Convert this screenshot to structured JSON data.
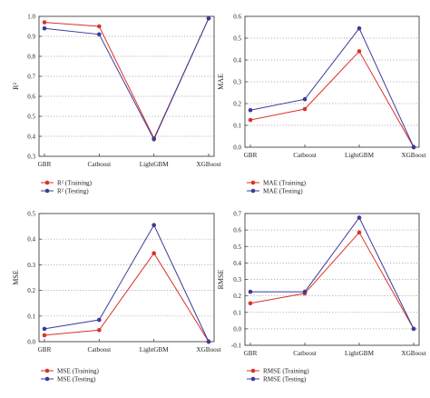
{
  "chart_data": [
    {
      "type": "line",
      "categories": [
        "GBR",
        "Catboost",
        "LightGBM",
        "XGBoost"
      ],
      "ylabel": "R²",
      "ylim": [
        0.3,
        1.0
      ],
      "yticks": [
        "0.3",
        "0.4",
        "0.5",
        "0.6",
        "0.7",
        "0.8",
        "0.9",
        "1.0"
      ],
      "grid": "horizontal dotted",
      "legend_position": "below",
      "series": [
        {
          "name": "R² (Training)",
          "color": "#d9332b",
          "values": [
            0.97,
            0.95,
            0.39,
            0.99
          ]
        },
        {
          "name": "R² (Testing)",
          "color": "#3b3b9a",
          "values": [
            0.94,
            0.91,
            0.385,
            0.99
          ]
        }
      ]
    },
    {
      "type": "line",
      "categories": [
        "GBR",
        "Catboost",
        "LightGBM",
        "XGBoost"
      ],
      "ylabel": "MAE",
      "ylim": [
        0.0,
        0.6
      ],
      "yticks": [
        "0.0",
        "0.1",
        "0.2",
        "0.3",
        "0.4",
        "0.5",
        "0.6"
      ],
      "grid": "horizontal dotted",
      "legend_position": "below",
      "series": [
        {
          "name": "MAE (Training)",
          "color": "#d9332b",
          "values": [
            0.125,
            0.175,
            0.44,
            0.0
          ]
        },
        {
          "name": "MAE (Testing)",
          "color": "#3b3b9a",
          "values": [
            0.17,
            0.22,
            0.545,
            0.0
          ]
        }
      ]
    },
    {
      "type": "line",
      "categories": [
        "GBR",
        "Catboost",
        "LightGBM",
        "XGBoost"
      ],
      "ylabel": "MSE",
      "ylim": [
        0.0,
        0.5
      ],
      "yticks": [
        "0.0",
        "0.1",
        "0.2",
        "0.3",
        "0.4",
        "0.5"
      ],
      "grid": "horizontal dotted",
      "legend_position": "below",
      "series": [
        {
          "name": "MSE (Training)",
          "color": "#d9332b",
          "values": [
            0.025,
            0.045,
            0.345,
            0.0
          ]
        },
        {
          "name": "MSE (Testing)",
          "color": "#3b3b9a",
          "values": [
            0.05,
            0.085,
            0.455,
            0.0
          ]
        }
      ]
    },
    {
      "type": "line",
      "categories": [
        "GBR",
        "Catboost",
        "LightGBM",
        "XGBoost"
      ],
      "ylabel": "RMSE",
      "ylim": [
        -0.1,
        0.7
      ],
      "yticks": [
        "-0.1",
        "0.0",
        "0.1",
        "0.2",
        "0.3",
        "0.4",
        "0.5",
        "0.6",
        "0.7"
      ],
      "grid": "horizontal dotted",
      "legend_position": "below",
      "series": [
        {
          "name": "RMSE (Training)",
          "color": "#d9332b",
          "values": [
            0.155,
            0.215,
            0.585,
            0.0
          ]
        },
        {
          "name": "RMSE (Testing)",
          "color": "#3b3b9a",
          "values": [
            0.225,
            0.225,
            0.675,
            0.0
          ]
        }
      ]
    }
  ]
}
